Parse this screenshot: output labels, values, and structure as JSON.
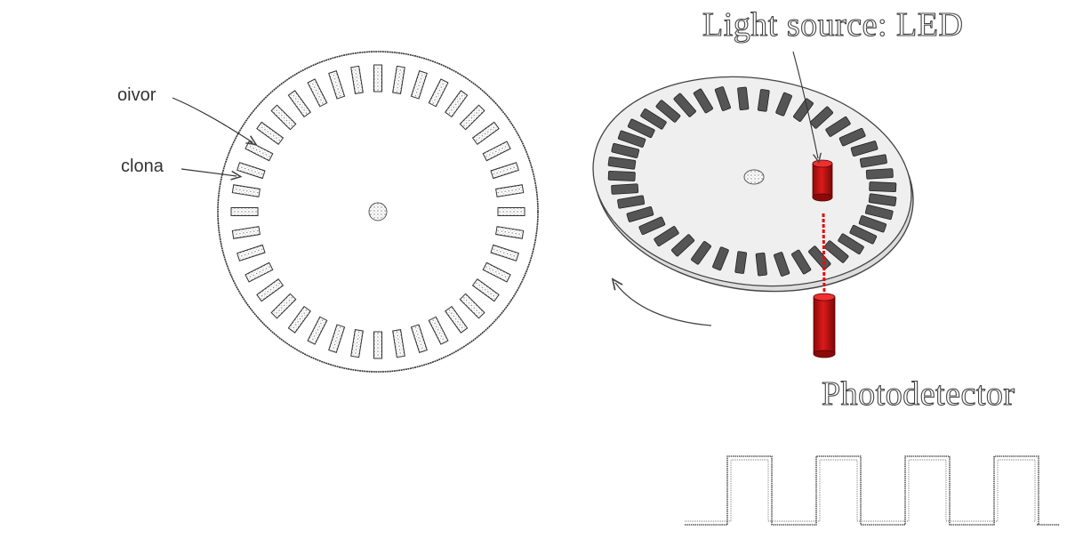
{
  "labels": {
    "outer_callout": "oivor",
    "inner_callout": "clona",
    "light_source": "Light source: LED",
    "photodetector": "Photodetector"
  },
  "disk_front": {
    "slot_count": 40,
    "slot_style": "stippled outline"
  },
  "disk_tilted": {
    "slot_count": 40,
    "slot_color": "#555555",
    "surface_color": "#eeeeee"
  },
  "led": {
    "color": "#cc1111"
  },
  "detector": {
    "color": "#cc1111"
  },
  "beam": {
    "color": "#dd1111",
    "style": "dashed"
  },
  "rotation_arrow": {
    "direction": "counter-clockwise"
  },
  "signal": {
    "type": "square-wave",
    "pulses": 4
  }
}
